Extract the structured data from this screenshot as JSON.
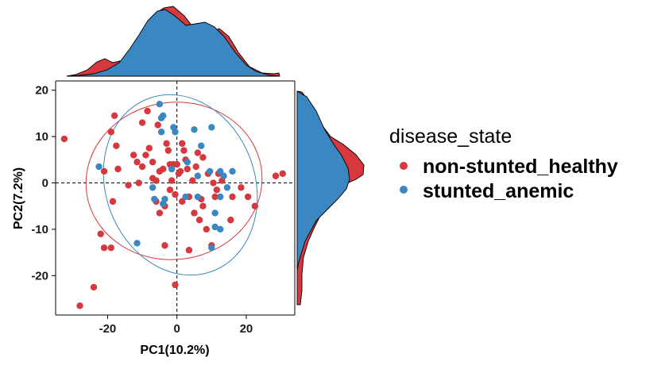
{
  "chart_data": {
    "type": "scatter",
    "xlabel": "PC1(10.2%)",
    "ylabel": "PC2(7.2%)",
    "xlim": [
      -35,
      34
    ],
    "ylim": [
      -28.5,
      22
    ],
    "xticks": [
      -20,
      0,
      20
    ],
    "yticks": [
      20,
      10,
      0,
      -10,
      -20
    ],
    "xtick_labels": [
      "-20",
      "0",
      "20"
    ],
    "ytick_labels": [
      "20",
      "10",
      "0",
      "-10",
      "-20"
    ],
    "grid": false,
    "reference_lines": {
      "x": 0,
      "y": 0,
      "style": "dashed"
    },
    "confidence_ellipses": true,
    "marginal_density": {
      "top": true,
      "right": true
    },
    "legend": {
      "title": "disease_state",
      "placement": "right",
      "entries": [
        "non-stunted_healthy",
        "stunted_anemic"
      ]
    },
    "series": [
      {
        "name": "non-stunted_healthy",
        "color": "#D7383D",
        "points": [
          [
            -32.5,
            9.5
          ],
          [
            -28,
            -26.5
          ],
          [
            -24,
            -22.5
          ],
          [
            -22,
            -11
          ],
          [
            -21,
            -14
          ],
          [
            -21,
            2.5
          ],
          [
            -19,
            11
          ],
          [
            -18,
            14.5
          ],
          [
            -17.5,
            8
          ],
          [
            -18.5,
            -4
          ],
          [
            -17,
            3
          ],
          [
            -14,
            -0.5
          ],
          [
            -12.5,
            6
          ],
          [
            -11.5,
            4.5
          ],
          [
            -11,
            0
          ],
          [
            -10,
            13
          ],
          [
            -10,
            3.5
          ],
          [
            -9,
            6
          ],
          [
            -8.5,
            15.5
          ],
          [
            -8,
            7.5
          ],
          [
            -7,
            4.5
          ],
          [
            -7,
            1
          ],
          [
            -6,
            0.5
          ],
          [
            -5.5,
            12.5
          ],
          [
            -6,
            -4
          ],
          [
            -5,
            2.5
          ],
          [
            -5,
            -6.5
          ],
          [
            -4,
            3
          ],
          [
            -3.5,
            -5
          ],
          [
            -3,
            8.5
          ],
          [
            -2.5,
            7
          ],
          [
            -2,
            -1.5
          ],
          [
            -2,
            4
          ],
          [
            -1.5,
            0.5
          ],
          [
            -1,
            4
          ],
          [
            -0.5,
            -22
          ],
          [
            0,
            4
          ],
          [
            0.5,
            2
          ],
          [
            -0.5,
            -2.5
          ],
          [
            1,
            2.5
          ],
          [
            1.5,
            -4
          ],
          [
            1.5,
            8.5
          ],
          [
            2,
            7
          ],
          [
            2.5,
            5
          ],
          [
            3,
            3
          ],
          [
            3.5,
            -3
          ],
          [
            3.5,
            -14.5
          ],
          [
            4.5,
            0.5
          ],
          [
            5,
            -6.5
          ],
          [
            5.5,
            3.5
          ],
          [
            6,
            6.5
          ],
          [
            6.5,
            -8
          ],
          [
            7,
            -3.5
          ],
          [
            7.5,
            -5
          ],
          [
            7.5,
            5.5
          ],
          [
            8.5,
            -10
          ],
          [
            9,
            2
          ],
          [
            10,
            -13.5
          ],
          [
            10.5,
            0
          ],
          [
            11,
            -3
          ],
          [
            11.5,
            -1.5
          ],
          [
            12,
            2
          ],
          [
            13,
            0.5
          ],
          [
            15.5,
            -8
          ],
          [
            16,
            -3
          ],
          [
            18.5,
            -1
          ],
          [
            20.5,
            -3
          ],
          [
            22.5,
            -5
          ],
          [
            28.5,
            1.5
          ],
          [
            30.5,
            2
          ],
          [
            -19,
            -14
          ],
          [
            -3.5,
            -13.5
          ]
        ]
      },
      {
        "name": "stunted_anemic",
        "color": "#3A87C1",
        "points": [
          [
            -22.5,
            3.5
          ],
          [
            -11.5,
            -13
          ],
          [
            -7,
            -1
          ],
          [
            -6.5,
            -3.5
          ],
          [
            -5,
            17
          ],
          [
            -4.5,
            14
          ],
          [
            -4.5,
            11
          ],
          [
            -4,
            -4.5
          ],
          [
            -4,
            14.5
          ],
          [
            -3.5,
            -3.5
          ],
          [
            -1,
            12
          ],
          [
            -1.5,
            3
          ],
          [
            -0.5,
            11
          ],
          [
            2.5,
            -3
          ],
          [
            3,
            4.5
          ],
          [
            5,
            11.5
          ],
          [
            6,
            -3
          ],
          [
            6,
            1.5
          ],
          [
            7,
            8
          ],
          [
            9.5,
            2.5
          ],
          [
            10,
            12
          ],
          [
            10,
            -14
          ],
          [
            11,
            -6.5
          ],
          [
            12.5,
            -10
          ],
          [
            12.5,
            2.5
          ],
          [
            12.5,
            -3
          ],
          [
            13.5,
            1.5
          ],
          [
            14.5,
            -1
          ],
          [
            16,
            2.5
          ],
          [
            11,
            -9.5
          ]
        ]
      }
    ]
  }
}
